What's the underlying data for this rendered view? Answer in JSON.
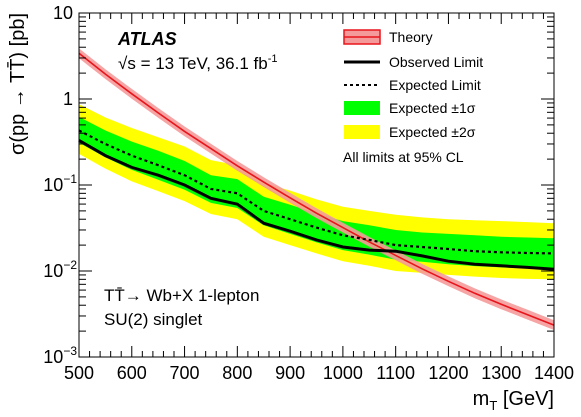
{
  "chart_data": {
    "type": "line",
    "x_axis": {
      "label_main": "m",
      "label_sub": "T",
      "label_rest": " [GeV]",
      "range": [
        500,
        1400
      ],
      "ticks": [
        "500",
        "600",
        "700",
        "800",
        "900",
        "1000",
        "1100",
        "1200",
        "1300",
        "1400"
      ]
    },
    "y_axis": {
      "scale": "log",
      "label": "σ(pp → TT̄) [pb]",
      "range": [
        0.001,
        10
      ],
      "ticks": [
        {
          "value": 0.001,
          "base": "10",
          "exp": "−3"
        },
        {
          "value": 0.01,
          "base": "10",
          "exp": "−2"
        },
        {
          "value": 0.1,
          "base": "10",
          "exp": "−1"
        },
        {
          "value": 1,
          "base": "1",
          "exp": ""
        },
        {
          "value": 10,
          "base": "10",
          "exp": ""
        }
      ]
    },
    "x": [
      500,
      550,
      600,
      650,
      700,
      750,
      800,
      850,
      900,
      950,
      1000,
      1050,
      1100,
      1150,
      1200,
      1250,
      1300,
      1350,
      1400
    ],
    "series": [
      {
        "name": "Theory",
        "values": [
          3.4,
          1.95,
          1.15,
          0.69,
          0.42,
          0.265,
          0.167,
          0.108,
          0.071,
          0.047,
          0.032,
          0.0218,
          0.0152,
          0.0106,
          0.0076,
          0.0055,
          0.0041,
          0.0031,
          0.00235
        ]
      },
      {
        "name": "Observed Limit",
        "values": [
          0.33,
          0.22,
          0.16,
          0.13,
          0.1,
          0.07,
          0.06,
          0.036,
          0.029,
          0.023,
          0.019,
          0.0175,
          0.017,
          0.015,
          0.013,
          0.012,
          0.0115,
          0.011,
          0.0105
        ]
      },
      {
        "name": "Expected Limit",
        "values": [
          0.43,
          0.3,
          0.22,
          0.17,
          0.13,
          0.09,
          0.08,
          0.05,
          0.04,
          0.032,
          0.026,
          0.023,
          0.02,
          0.019,
          0.018,
          0.017,
          0.0165,
          0.0162,
          0.016
        ]
      },
      {
        "name": "Expected ±1σ",
        "lower": [
          0.31,
          0.21,
          0.15,
          0.115,
          0.088,
          0.062,
          0.054,
          0.034,
          0.027,
          0.0215,
          0.0175,
          0.0155,
          0.0135,
          0.0128,
          0.012,
          0.0114,
          0.011,
          0.0107,
          0.0105
        ],
        "upper": [
          0.62,
          0.43,
          0.32,
          0.25,
          0.19,
          0.13,
          0.117,
          0.073,
          0.059,
          0.047,
          0.038,
          0.034,
          0.03,
          0.028,
          0.027,
          0.026,
          0.025,
          0.0245,
          0.024
        ]
      },
      {
        "name": "Expected ±2σ",
        "lower": [
          0.23,
          0.155,
          0.11,
          0.085,
          0.065,
          0.046,
          0.04,
          0.025,
          0.02,
          0.016,
          0.013,
          0.0115,
          0.01,
          0.0095,
          0.009,
          0.0086,
          0.0083,
          0.0081,
          0.008
        ],
        "upper": [
          0.87,
          0.61,
          0.46,
          0.36,
          0.28,
          0.195,
          0.17,
          0.106,
          0.086,
          0.068,
          0.056,
          0.05,
          0.045,
          0.042,
          0.04,
          0.039,
          0.038,
          0.037,
          0.036
        ]
      }
    ],
    "legend": {
      "placement": "top-right",
      "entries": [
        {
          "label": "Theory",
          "style": "band-red"
        },
        {
          "label": "Observed Limit",
          "style": "solid"
        },
        {
          "label": "Expected Limit",
          "style": "dashed"
        },
        {
          "label": "Expected ±1σ",
          "style": "band-green"
        },
        {
          "label": "Expected ±2σ",
          "style": "band-yellow"
        }
      ],
      "note": "All limits at 95% CL"
    },
    "annotations": {
      "experiment": "ATLAS",
      "energy_sqrt": "√",
      "energy_text": "s = 13 TeV, 36.1 fb",
      "energy_sup": "-1",
      "process": "TT̄→ Wb+X 1-lepton",
      "model": "SU(2) singlet"
    },
    "colors": {
      "theory_line": "#e8151c",
      "theory_band": "#f59a9a",
      "band_1sigma": "#00ff00",
      "band_2sigma": "#ffff00",
      "lines": "#000000"
    },
    "grid": false
  }
}
